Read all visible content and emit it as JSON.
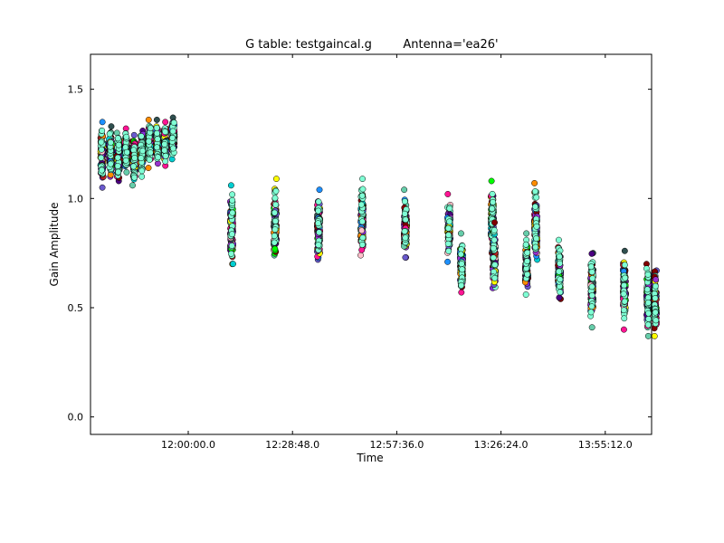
{
  "chart_data": {
    "type": "scatter",
    "title_left": "G table: testgaincal.g",
    "title_right": "Antenna='ea26'",
    "xlabel": "Time",
    "ylabel": "Gain Amplitude",
    "x_unit": "time of day (hh:mm:ss)",
    "xlim": [
      "11:33:00",
      "14:08:00"
    ],
    "ylim": [
      -0.08,
      1.66
    ],
    "x_ticks": [
      "12:00:00.0",
      "12:28:48.0",
      "12:57:36.0",
      "13:26:24.0",
      "13:55:12.0"
    ],
    "y_ticks": [
      "0.0",
      "0.5",
      "1.0",
      "1.5"
    ],
    "grid": false,
    "legend": "none",
    "point_colors": [
      "#8a2be2",
      "#ff1493",
      "#800000",
      "#7fffd4",
      "#1e90ff",
      "#00ff00",
      "#ff8c00",
      "#4b0082",
      "#00ced1",
      "#ffff00",
      "#66cdaa",
      "#9932cc",
      "#b22222",
      "#2f4f4f",
      "#ffc0cb",
      "#6a5acd"
    ],
    "clusters": [
      {
        "time": "11:36:10",
        "min": 1.05,
        "max": 1.35,
        "center": 1.2
      },
      {
        "time": "11:38:30",
        "min": 1.1,
        "max": 1.33,
        "center": 1.21
      },
      {
        "time": "11:40:40",
        "min": 1.08,
        "max": 1.3,
        "center": 1.19
      },
      {
        "time": "11:42:50",
        "min": 1.12,
        "max": 1.32,
        "center": 1.22
      },
      {
        "time": "11:45:00",
        "min": 1.06,
        "max": 1.29,
        "center": 1.18
      },
      {
        "time": "11:47:10",
        "min": 1.1,
        "max": 1.31,
        "center": 1.21
      },
      {
        "time": "11:49:20",
        "min": 1.14,
        "max": 1.36,
        "center": 1.25
      },
      {
        "time": "11:51:30",
        "min": 1.16,
        "max": 1.36,
        "center": 1.26
      },
      {
        "time": "11:53:40",
        "min": 1.15,
        "max": 1.35,
        "center": 1.25
      },
      {
        "time": "11:55:50",
        "min": 1.18,
        "max": 1.37,
        "center": 1.28
      },
      {
        "time": "12:12:00",
        "min": 0.7,
        "max": 1.06,
        "center": 0.86
      },
      {
        "time": "12:24:00",
        "min": 0.74,
        "max": 1.09,
        "center": 0.89
      },
      {
        "time": "12:36:00",
        "min": 0.72,
        "max": 1.04,
        "center": 0.86
      },
      {
        "time": "12:48:00",
        "min": 0.74,
        "max": 1.09,
        "center": 0.91
      },
      {
        "time": "13:00:00",
        "min": 0.73,
        "max": 1.04,
        "center": 0.87
      },
      {
        "time": "13:12:00",
        "min": 0.71,
        "max": 1.02,
        "center": 0.86
      },
      {
        "time": "13:24:00",
        "min": 0.75,
        "max": 1.08,
        "center": 0.9
      },
      {
        "time": "13:36:00",
        "min": 0.72,
        "max": 1.07,
        "center": 0.88
      },
      {
        "time": "13:15:30",
        "min": 0.57,
        "max": 0.84,
        "center": 0.69
      },
      {
        "time": "13:24:30",
        "min": 0.59,
        "max": 0.89,
        "center": 0.72
      },
      {
        "time": "13:33:30",
        "min": 0.56,
        "max": 0.84,
        "center": 0.69
      },
      {
        "time": "13:42:30",
        "min": 0.54,
        "max": 0.81,
        "center": 0.67
      },
      {
        "time": "13:51:30",
        "min": 0.41,
        "max": 0.75,
        "center": 0.59
      },
      {
        "time": "14:00:30",
        "min": 0.4,
        "max": 0.76,
        "center": 0.58
      },
      {
        "time": "14:07:00",
        "min": 0.37,
        "max": 0.7,
        "center": 0.54
      },
      {
        "time": "14:09:00",
        "min": 0.37,
        "max": 0.67,
        "center": 0.53
      }
    ]
  }
}
